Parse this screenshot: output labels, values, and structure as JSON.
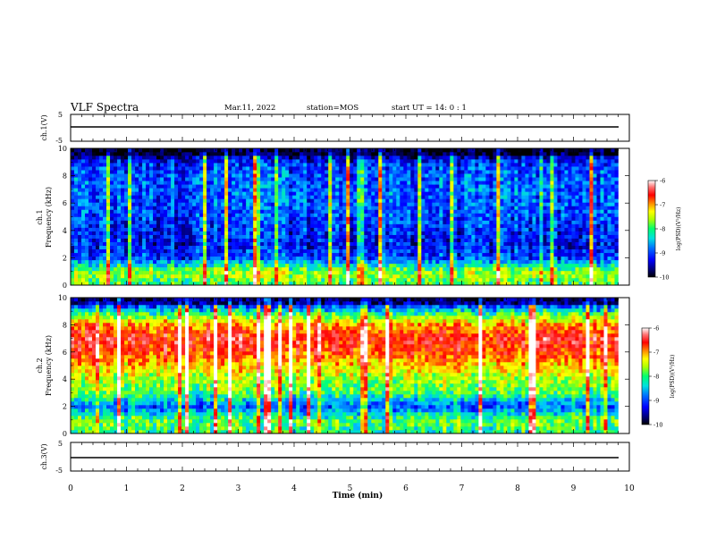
{
  "header": {
    "title": "VLF Spectra",
    "date": "Mar.11, 2022",
    "station": "station=MOS",
    "start": "start UT =  14: 0 : 1"
  },
  "chart_data": [
    {
      "type": "line",
      "panel": "ch1-voltage",
      "ylabel": "ch.1(V)",
      "xlim": [
        0,
        10
      ],
      "ylim": [
        -5,
        5
      ],
      "yticks": [
        "5",
        "-5"
      ],
      "x": [
        0,
        9.8
      ],
      "values": [
        -1.4,
        -1.4
      ]
    },
    {
      "type": "heatmap",
      "panel": "ch1-spectrogram",
      "ylabel": "ch.1\nFrequency (kHz)",
      "xlim": [
        0,
        10
      ],
      "ylim": [
        0,
        10
      ],
      "yticks": [
        "0",
        "2",
        "4",
        "6",
        "8",
        "10"
      ],
      "data_end_min": 9.8,
      "intensity_profile": {
        "freq_khz": [
          0.3,
          0.8,
          1.3,
          2,
          3,
          4,
          5,
          6,
          7,
          8,
          9,
          9.7
        ],
        "log_psd": [
          -8.3,
          -8.0,
          -8.4,
          -9.3,
          -9.5,
          -9.4,
          -9.3,
          -9.2,
          -9.2,
          -9.2,
          -9.4,
          -10
        ]
      },
      "colorbar": {
        "label": "log(PSD)(V²/Hz)",
        "ticks": [
          "-6",
          "-7",
          "-8",
          "-9",
          "-10"
        ],
        "range": [
          -10,
          -6
        ]
      }
    },
    {
      "type": "heatmap",
      "panel": "ch2-spectrogram",
      "ylabel": "ch.2\nFrequency (kHz)",
      "xlim": [
        0,
        10
      ],
      "ylim": [
        0,
        10
      ],
      "yticks": [
        "0",
        "2",
        "4",
        "6",
        "8",
        "10"
      ],
      "data_end_min": 9.8,
      "intensity_profile": {
        "freq_khz": [
          0.3,
          0.8,
          1.3,
          2,
          3,
          4,
          5,
          6,
          7,
          8,
          9,
          9.7
        ],
        "log_psd": [
          -8.4,
          -8.2,
          -8.5,
          -9.2,
          -8.3,
          -8.0,
          -7.6,
          -7.1,
          -6.9,
          -7.4,
          -8.6,
          -9.8
        ]
      },
      "colorbar": {
        "label": "log(PSD)(V²/Hz)",
        "ticks": [
          "-6",
          "-7",
          "-8",
          "-9",
          "-10"
        ],
        "range": [
          -10,
          -6
        ]
      }
    },
    {
      "type": "line",
      "panel": "ch3-voltage",
      "ylabel": "ch.3(V)",
      "xlim": [
        0,
        10
      ],
      "ylim": [
        -5,
        5
      ],
      "yticks": [
        "5",
        "-5"
      ],
      "x": [
        0,
        9.8
      ],
      "values": [
        -1.4,
        -1.4
      ]
    }
  ],
  "xaxis": {
    "label": "Time (min)",
    "ticks": [
      "0",
      "1",
      "2",
      "3",
      "4",
      "5",
      "6",
      "7",
      "8",
      "9",
      "10"
    ]
  },
  "colors": {
    "colormap": [
      "#000000",
      "#00007a",
      "#0000ff",
      "#0060ff",
      "#00c8ff",
      "#00ff80",
      "#a0ff00",
      "#ffff00",
      "#ff8000",
      "#ff0000",
      "#ff6060",
      "#ffffff"
    ]
  }
}
